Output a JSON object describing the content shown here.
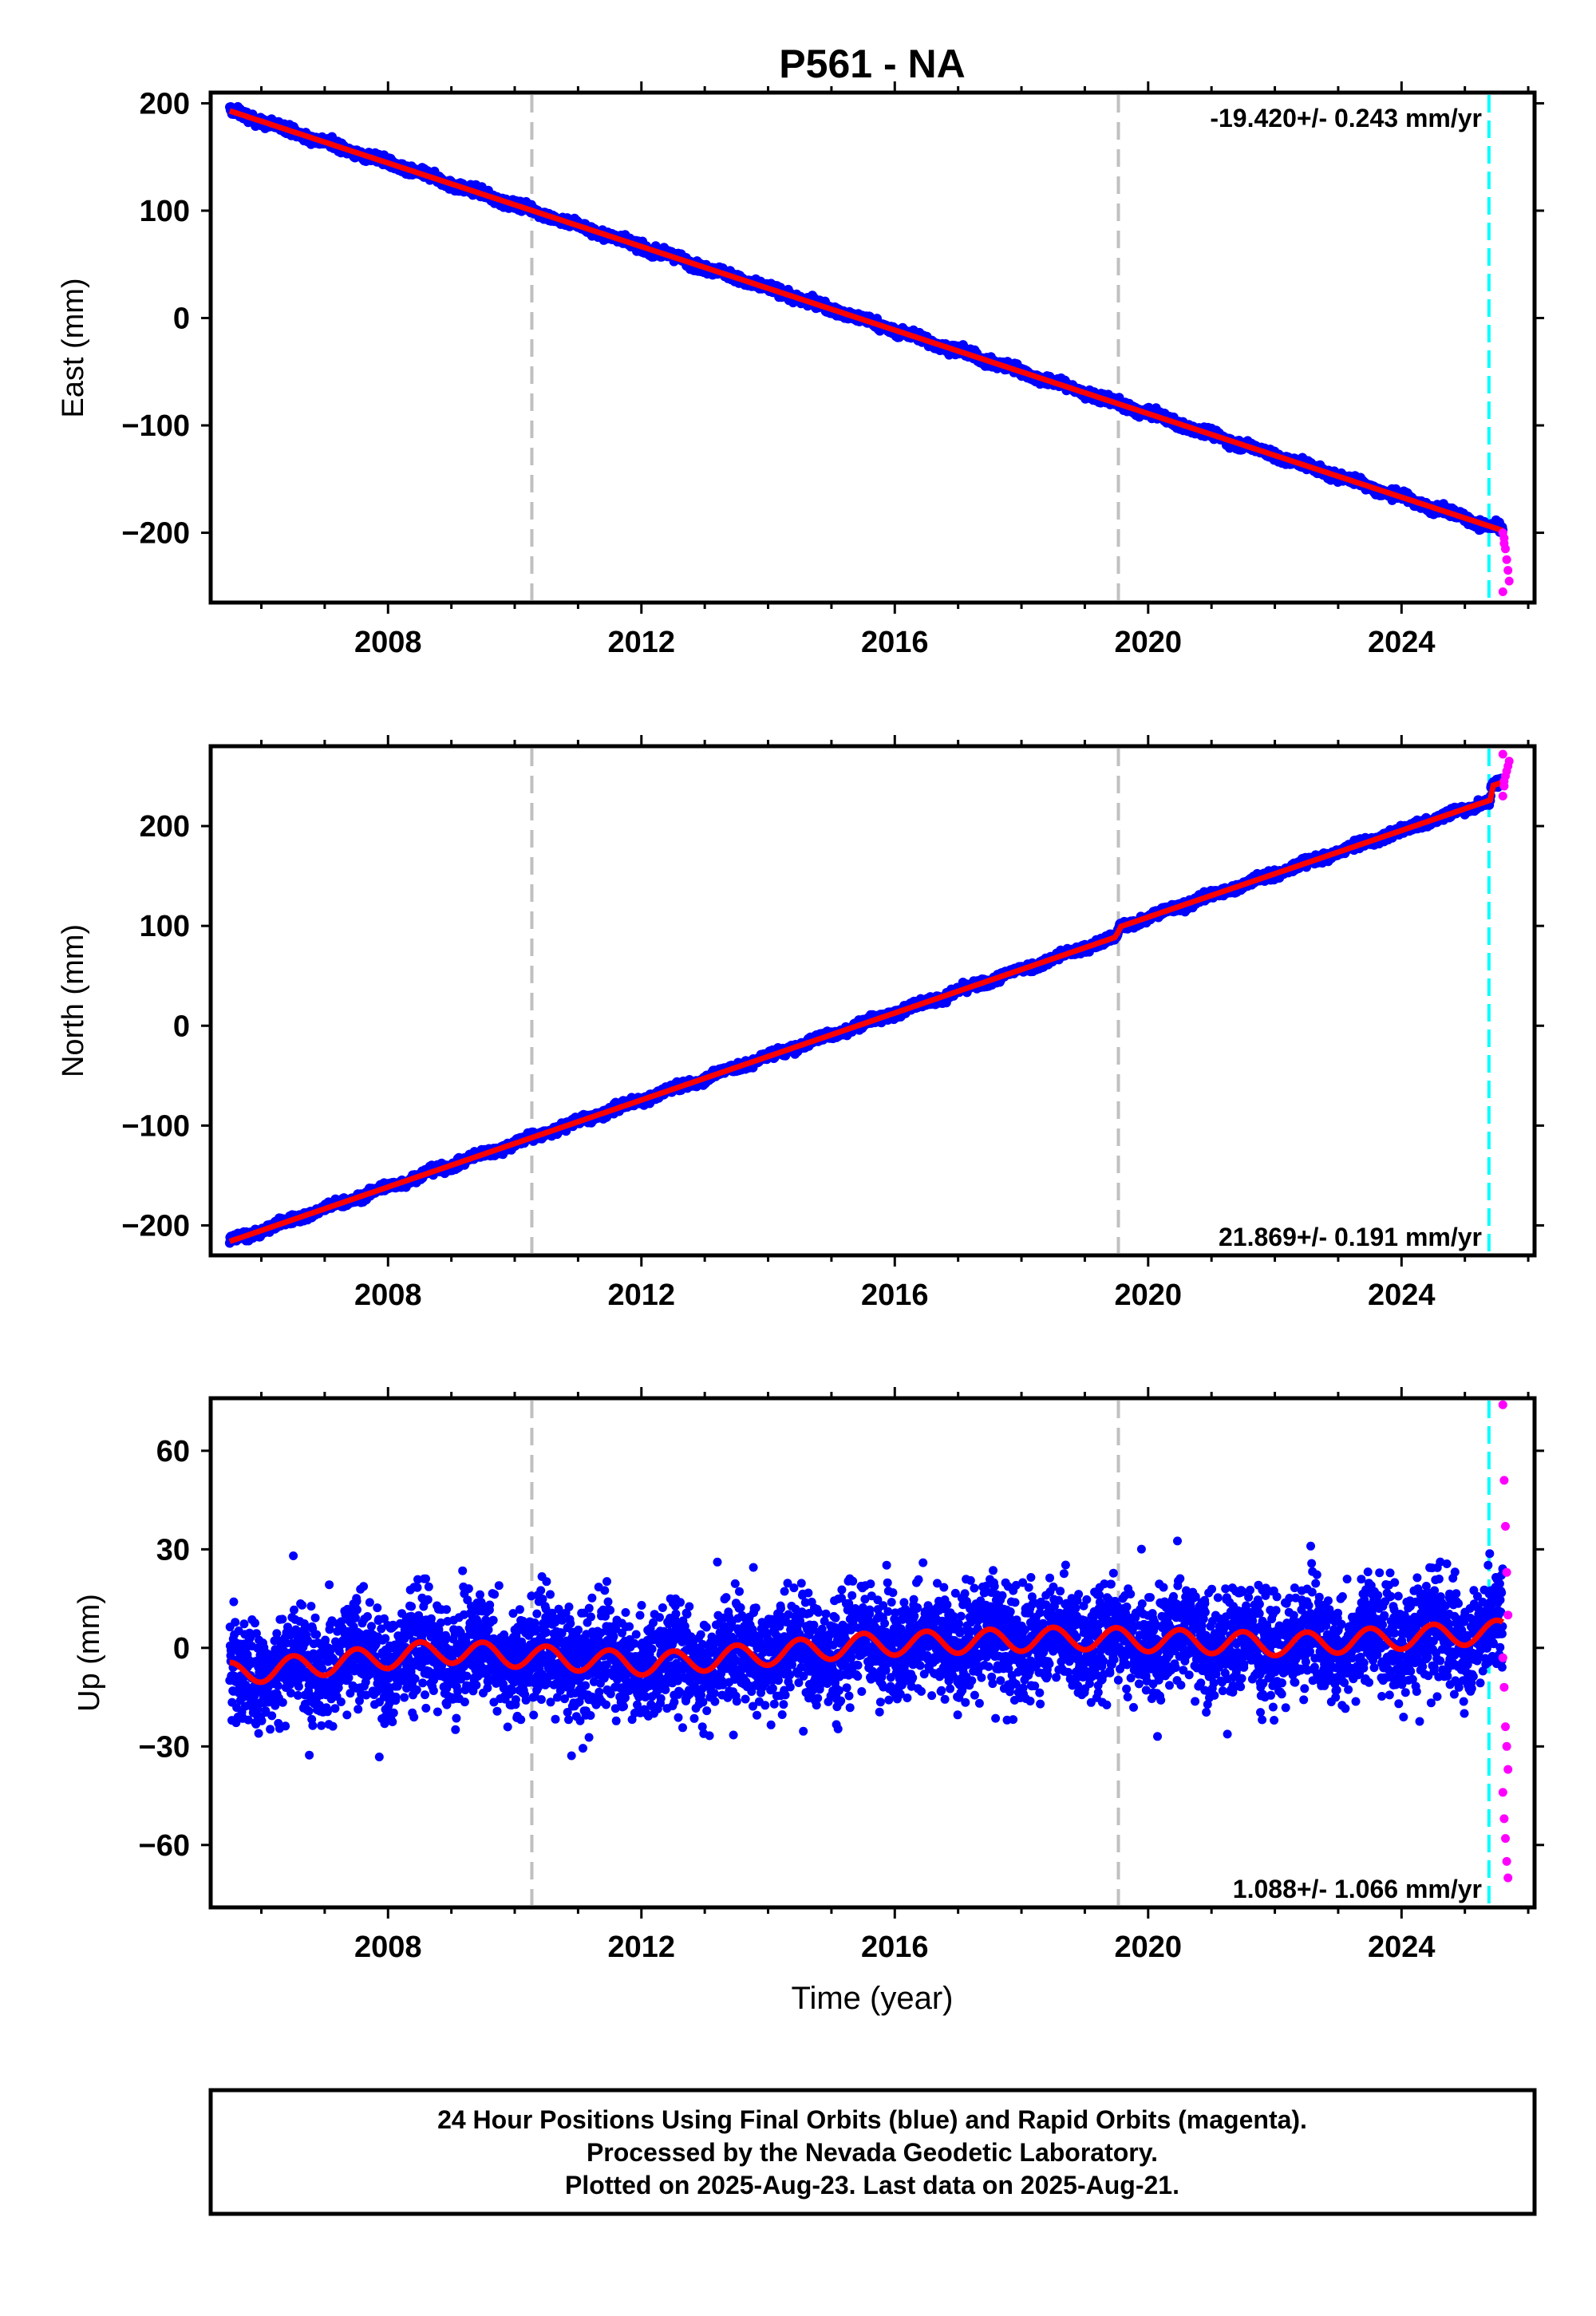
{
  "title": "P561 - NA",
  "colors": {
    "final": "#0000ff",
    "rapid": "#ff00ff",
    "model": "#ff0000",
    "break_line": "#c0c0c0",
    "last_line": "#00ffff"
  },
  "x_axis": {
    "label": "Time (year)",
    "range": [
      2005.2,
      2026.1
    ],
    "ticks": [
      2008,
      2012,
      2016,
      2020,
      2024
    ]
  },
  "vertical_lines": {
    "breaks": [
      2010.27,
      2019.53
    ],
    "last_data": 2025.38
  },
  "chart_data": [
    {
      "type": "scatter",
      "ylabel": "East (mm)",
      "rate": "-19.420+/- 0.243 mm/yr",
      "rate_position": "top-right",
      "xlim": [
        2005.2,
        2026.1
      ],
      "ylim": [
        -265,
        210
      ],
      "yticks": [
        200,
        100,
        0,
        -100,
        -200
      ],
      "ytick_labels": [
        "200",
        "100",
        "0",
        "−100",
        "−200"
      ],
      "series": [
        {
          "role": "final orbits",
          "color": "#0000ff",
          "x_range": [
            2005.5,
            2025.6
          ],
          "start": 193,
          "end": -197,
          "scatter": 3
        },
        {
          "role": "model",
          "color": "#ff0000",
          "x": [
            2005.5,
            2025.6
          ],
          "y": [
            193,
            -198
          ]
        },
        {
          "role": "rapid orbits",
          "color": "#ff00ff",
          "x": [
            2025.6,
            2025.62,
            2025.64,
            2025.66,
            2025.68,
            2025.7,
            2025.6,
            2025.62
          ],
          "y": [
            -200,
            -205,
            -215,
            -225,
            -235,
            -245,
            -255,
            -210
          ]
        }
      ]
    },
    {
      "type": "scatter",
      "ylabel": "North (mm)",
      "rate": "21.869+/- 0.191 mm/yr",
      "rate_position": "bottom-right",
      "xlim": [
        2005.2,
        2026.1
      ],
      "ylim": [
        -230,
        280
      ],
      "yticks": [
        200,
        100,
        0,
        -100,
        -200
      ],
      "ytick_labels": [
        "200",
        "100",
        "0",
        "−100",
        "−200"
      ],
      "series": [
        {
          "role": "final orbits",
          "color": "#0000ff",
          "x_range": [
            2005.5,
            2025.6
          ],
          "start": -216,
          "end": 228,
          "scatter": 3
        },
        {
          "role": "model",
          "color": "#ff0000",
          "x": [
            2005.5,
            2019.5,
            2019.55,
            2025.4,
            2025.42,
            2025.6
          ],
          "y": [
            -216,
            89,
            99,
            226,
            240,
            244
          ]
        },
        {
          "role": "rapid orbits",
          "color": "#ff00ff",
          "x": [
            2025.6,
            2025.62,
            2025.64,
            2025.66,
            2025.68,
            2025.7,
            2025.6,
            2025.62
          ],
          "y": [
            230,
            240,
            250,
            255,
            260,
            265,
            272,
            245
          ]
        }
      ]
    },
    {
      "type": "scatter",
      "ylabel": "Up (mm)",
      "rate": "1.088+/- 1.066 mm/yr",
      "rate_position": "bottom-right",
      "xlim": [
        2005.2,
        2026.1
      ],
      "ylim": [
        -79,
        76
      ],
      "yticks": [
        60,
        30,
        0,
        -30,
        -60
      ],
      "ytick_labels": [
        "60",
        "30",
        "0",
        "−30",
        "−60"
      ],
      "series": [
        {
          "role": "final orbits",
          "color": "#0000ff",
          "x_range": [
            2005.5,
            2025.6
          ],
          "start": -7,
          "end": 7,
          "scatter": 11,
          "seasonal_amplitude": 5
        },
        {
          "role": "model",
          "color": "#ff0000",
          "x_range": [
            2005.5,
            2025.6
          ],
          "offsets": [
            -8,
            -1,
            -5,
            1,
            3,
            1,
            5
          ],
          "seasonal_amplitude": 3.5
        },
        {
          "role": "rapid orbits",
          "color": "#ff00ff",
          "x": [
            2025.6,
            2025.62,
            2025.64,
            2025.66,
            2025.68,
            2025.6,
            2025.62,
            2025.64,
            2025.66,
            2025.68,
            2025.6,
            2025.62,
            2025.64,
            2025.66,
            2025.68
          ],
          "y": [
            74,
            51,
            37,
            23,
            10,
            -3,
            -12,
            -24,
            -30,
            -37,
            -44,
            -52,
            -58,
            -65,
            -70
          ]
        }
      ]
    }
  ],
  "footer": {
    "line1": "24 Hour Positions Using Final Orbits (blue) and Rapid Orbits (magenta).",
    "line2": "Processed by the Nevada Geodetic Laboratory.",
    "line3": "Plotted on 2025-Aug-23. Last data on 2025-Aug-21."
  }
}
